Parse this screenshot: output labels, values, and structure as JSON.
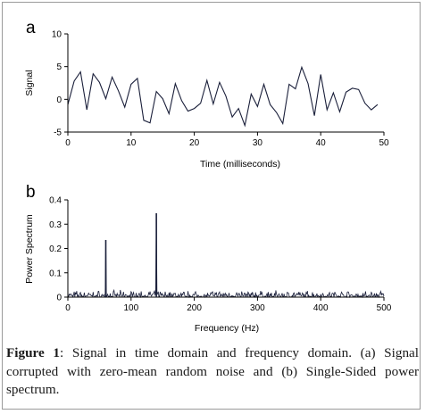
{
  "figure": {
    "caption_label": "Figure 1",
    "caption_text": ": Signal in time domain and frequency domain. (a) Signal corrupted with zero-mean random noise and (b) Single-Sided power spectrum."
  },
  "colors": {
    "line": "#1a1f3a",
    "axis": "#000000"
  },
  "chart_data": [
    {
      "type": "line",
      "panel_label": "a",
      "xlabel": "Time (milliseconds)",
      "ylabel": "Signal",
      "xlim": [
        0,
        50
      ],
      "ylim": [
        -5,
        10
      ],
      "xticks": [
        0,
        10,
        20,
        30,
        40,
        50
      ],
      "yticks": [
        -5,
        0,
        5,
        10
      ],
      "grid": false,
      "series": [
        {
          "x": [
            0,
            1,
            2,
            3,
            4,
            5,
            6,
            7,
            8,
            9,
            10,
            11,
            12,
            13,
            14,
            15,
            16,
            17,
            18,
            19,
            20,
            21,
            22,
            23,
            24,
            25,
            26,
            27,
            28,
            29,
            30,
            31,
            32,
            33,
            34,
            35,
            36,
            37,
            38,
            39,
            40,
            41,
            42,
            43,
            44,
            45,
            46,
            47,
            48,
            49
          ],
          "values": [
            -0.8,
            2.8,
            4.2,
            -1.6,
            3.9,
            2.6,
            0.1,
            3.4,
            1.3,
            -1.2,
            2.3,
            3.2,
            -3.2,
            -3.6,
            1.2,
            0.1,
            -2.2,
            2.4,
            -0.2,
            -1.8,
            -1.4,
            -0.6,
            2.9,
            -0.7,
            2.6,
            0.5,
            -2.7,
            -1.4,
            -4.0,
            0.8,
            -1.1,
            2.3,
            -0.8,
            -2.0,
            -3.7,
            2.3,
            1.6,
            4.9,
            2.4,
            -2.5,
            3.8,
            -1.6,
            1.0,
            -1.9,
            1.1,
            1.7,
            1.5,
            -0.6,
            -1.6,
            -0.8
          ]
        }
      ]
    },
    {
      "type": "line",
      "panel_label": "b",
      "xlabel": "Frequency (Hz)",
      "ylabel": "Power Spectrum",
      "xlim": [
        0,
        500
      ],
      "ylim": [
        0,
        0.4
      ],
      "xticks": [
        0,
        100,
        200,
        300,
        400,
        500
      ],
      "yticks": [
        0,
        0.1,
        0.2,
        0.3,
        0.4
      ],
      "grid": false,
      "peaks": [
        {
          "x": 60,
          "value": 0.235
        },
        {
          "x": 140,
          "value": 0.345
        }
      ],
      "noise_floor_max": 0.03
    }
  ]
}
